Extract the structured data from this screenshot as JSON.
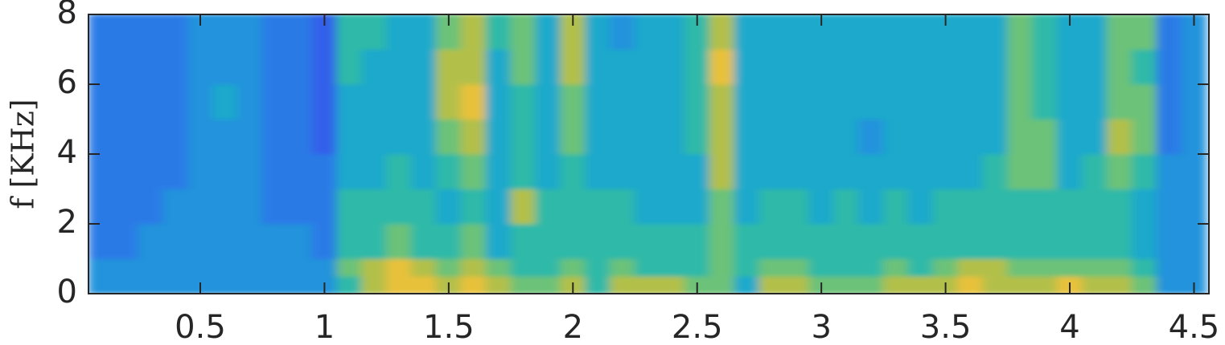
{
  "chart_data": {
    "type": "spectrogram",
    "ylabel": "f [KHz]",
    "xlim": [
      0.05,
      4.56
    ],
    "ylim": [
      0,
      8
    ],
    "xticks": [
      0.5,
      1,
      1.5,
      2,
      2.5,
      3,
      3.5,
      4,
      4.5
    ],
    "yticks": [
      0,
      2,
      4,
      6,
      8
    ],
    "xbins": [
      0.05,
      0.15,
      0.25,
      0.35,
      0.45,
      0.55,
      0.65,
      0.75,
      0.85,
      0.95,
      1.05,
      1.15,
      1.25,
      1.35,
      1.45,
      1.55,
      1.65,
      1.75,
      1.85,
      1.95,
      2.05,
      2.15,
      2.25,
      2.35,
      2.45,
      2.55,
      2.65,
      2.75,
      2.85,
      2.95,
      3.05,
      3.15,
      3.25,
      3.35,
      3.45,
      3.55,
      3.65,
      3.75,
      3.85,
      3.95,
      4.05,
      4.15,
      4.25,
      4.35,
      4.45,
      4.55
    ],
    "ybins": [
      0,
      0.5,
      1,
      2,
      3,
      4,
      5,
      6,
      7,
      8
    ],
    "colormap": [
      "#3b4fe8",
      "#3260ea",
      "#2b7ae6",
      "#2193dc",
      "#1fa9cc",
      "#2fb9a8",
      "#6cc278",
      "#b2c04a",
      "#e8c13a",
      "#f9d72b"
    ],
    "z": [
      [
        3,
        3,
        2,
        2,
        2,
        2,
        2,
        2,
        2
      ],
      [
        3,
        3,
        2,
        2,
        2,
        2,
        2,
        2,
        2
      ],
      [
        3,
        3,
        3,
        2,
        2,
        2,
        2,
        2,
        2
      ],
      [
        3,
        3,
        3,
        3,
        2,
        2,
        2,
        2,
        2
      ],
      [
        3,
        3,
        3,
        3,
        3,
        3,
        3,
        3,
        3
      ],
      [
        3,
        3,
        3,
        3,
        3,
        3,
        4,
        3,
        3
      ],
      [
        3,
        3,
        3,
        3,
        3,
        3,
        3,
        3,
        3
      ],
      [
        3,
        3,
        3,
        2,
        2,
        2,
        2,
        2,
        2
      ],
      [
        3,
        3,
        3,
        2,
        2,
        2,
        2,
        2,
        2
      ],
      [
        3,
        3,
        2,
        2,
        2,
        1,
        1,
        1,
        1
      ],
      [
        5,
        6,
        5,
        5,
        4,
        4,
        4,
        5,
        5
      ],
      [
        7,
        7,
        5,
        5,
        4,
        4,
        4,
        4,
        5
      ],
      [
        8,
        8,
        6,
        5,
        5,
        4,
        4,
        4,
        4
      ],
      [
        8,
        7,
        5,
        5,
        4,
        4,
        4,
        4,
        4
      ],
      [
        7,
        6,
        5,
        4,
        5,
        6,
        7,
        7,
        6
      ],
      [
        8,
        7,
        6,
        5,
        6,
        7,
        8,
        7,
        7
      ],
      [
        7,
        6,
        4,
        4,
        4,
        4,
        4,
        4,
        5
      ],
      [
        6,
        5,
        5,
        7,
        5,
        5,
        5,
        6,
        6
      ],
      [
        6,
        5,
        5,
        5,
        4,
        4,
        4,
        4,
        4
      ],
      [
        7,
        6,
        5,
        5,
        5,
        6,
        6,
        7,
        7
      ],
      [
        5,
        5,
        5,
        5,
        4,
        4,
        4,
        4,
        4
      ],
      [
        7,
        6,
        5,
        5,
        4,
        4,
        4,
        4,
        3
      ],
      [
        7,
        5,
        5,
        4,
        4,
        4,
        4,
        4,
        4
      ],
      [
        7,
        5,
        5,
        4,
        4,
        4,
        4,
        4,
        4
      ],
      [
        6,
        5,
        5,
        4,
        4,
        5,
        5,
        5,
        5
      ],
      [
        6,
        6,
        6,
        6,
        7,
        7,
        7,
        8,
        7
      ],
      [
        4,
        5,
        5,
        4,
        4,
        4,
        4,
        4,
        4
      ],
      [
        7,
        6,
        5,
        5,
        4,
        4,
        4,
        4,
        4
      ],
      [
        7,
        6,
        5,
        5,
        4,
        4,
        4,
        4,
        4
      ],
      [
        6,
        5,
        5,
        4,
        4,
        4,
        4,
        4,
        4
      ],
      [
        6,
        5,
        5,
        5,
        4,
        4,
        4,
        4,
        4
      ],
      [
        6,
        5,
        5,
        4,
        4,
        3,
        4,
        4,
        4
      ],
      [
        7,
        6,
        5,
        5,
        4,
        4,
        4,
        4,
        4
      ],
      [
        7,
        5,
        5,
        4,
        4,
        4,
        4,
        4,
        4
      ],
      [
        7,
        6,
        5,
        5,
        4,
        4,
        4,
        4,
        4
      ],
      [
        8,
        7,
        5,
        5,
        4,
        4,
        4,
        4,
        4
      ],
      [
        7,
        7,
        5,
        5,
        5,
        4,
        4,
        4,
        4
      ],
      [
        7,
        6,
        5,
        5,
        6,
        6,
        6,
        6,
        6
      ],
      [
        7,
        6,
        5,
        5,
        6,
        6,
        5,
        5,
        5
      ],
      [
        8,
        6,
        5,
        5,
        4,
        4,
        4,
        4,
        4
      ],
      [
        7,
        6,
        5,
        5,
        5,
        4,
        4,
        4,
        4
      ],
      [
        7,
        6,
        5,
        5,
        6,
        7,
        6,
        6,
        6
      ],
      [
        6,
        5,
        4,
        4,
        5,
        6,
        6,
        5,
        6
      ],
      [
        3,
        3,
        3,
        3,
        3,
        2,
        2,
        2,
        2
      ],
      [
        3,
        3,
        3,
        3,
        3,
        3,
        3,
        3,
        3
      ]
    ]
  }
}
